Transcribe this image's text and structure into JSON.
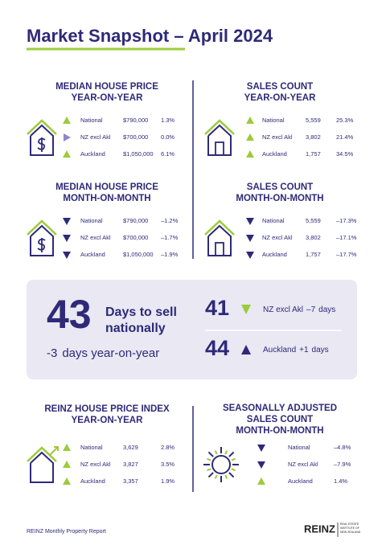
{
  "title": "Market Snapshot – April 2024",
  "panels": [
    {
      "title_lines": [
        "MEDIAN HOUSE PRICE",
        "YEAR-ON-YEAR"
      ],
      "rows": [
        {
          "label": "National",
          "value": "$790,000",
          "change": "1.3%"
        },
        {
          "label": "NZ excl Akl",
          "value": "$700,000",
          "change": "0.0%"
        },
        {
          "label": "Auckland",
          "value": "$1,050,000",
          "change": "6.1%"
        }
      ]
    },
    {
      "title_lines": [
        "SALES COUNT",
        "YEAR-ON-YEAR"
      ],
      "rows": [
        {
          "label": "National",
          "value": "5,559",
          "change": "25.3%"
        },
        {
          "label": "NZ excl Akl",
          "value": "3,802",
          "change": "21.4%"
        },
        {
          "label": "Auckland",
          "value": "1,757",
          "change": "34.5%"
        }
      ]
    },
    {
      "title_lines": [
        "MEDIAN HOUSE PRICE",
        "MONTH-ON-MONTH"
      ],
      "rows": [
        {
          "label": "National",
          "value": "$790,000",
          "change": "–1.2%"
        },
        {
          "label": "NZ excl Akl",
          "value": "$700,000",
          "change": "–1.7%"
        },
        {
          "label": "Auckland",
          "value": "$1,050,000",
          "change": "–1.9%"
        }
      ]
    },
    {
      "title_lines": [
        "SALES COUNT",
        "MONTH-ON-MONTH"
      ],
      "rows": [
        {
          "label": "National",
          "value": "5,559",
          "change": "–17.3%"
        },
        {
          "label": "NZ excl Akl",
          "value": "3,802",
          "change": "–17.1%"
        },
        {
          "label": "Auckland",
          "value": "1,757",
          "change": "–17.7%"
        }
      ]
    },
    {
      "title_lines": [
        "REINZ HOUSE PRICE INDEX",
        "YEAR-ON-YEAR"
      ],
      "rows": [
        {
          "label": "National",
          "value": "3,629",
          "change": "2.8%"
        },
        {
          "label": "NZ excl Akl",
          "value": "3,827",
          "change": "3.5%"
        },
        {
          "label": "Auckland",
          "value": "3,357",
          "change": "1.9%"
        }
      ]
    },
    {
      "title_lines": [
        "SEASONALLY ADJUSTED",
        "SALES COUNT",
        "MONTH-ON-MONTH"
      ],
      "rows": [
        {
          "label": "National",
          "change": "–4.8%"
        },
        {
          "label": "NZ excl Akl",
          "change": "–7.9%"
        },
        {
          "label": "Auckland",
          "change": "1.4%"
        }
      ]
    }
  ],
  "days": {
    "number": "43",
    "label_lines": [
      "Days to sell",
      "nationally"
    ],
    "change": "-3",
    "change_label": "days year-on-year",
    "regions": [
      {
        "number": "41",
        "label": "NZ excl Akl",
        "change": "–7",
        "unit": "days"
      },
      {
        "number": "44",
        "label": "Auckland",
        "change": "+1",
        "unit": "days"
      }
    ]
  },
  "footer": "REINZ Monthly Property Report",
  "logo": {
    "name": "REINZ",
    "lines": [
      "REAL ESTATE",
      "INSTITUTE OF",
      "NEW ZEALAND"
    ]
  }
}
